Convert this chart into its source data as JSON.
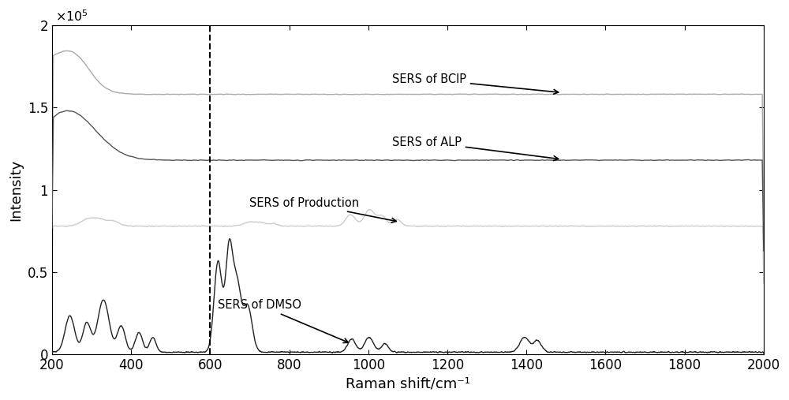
{
  "x_min": 200,
  "x_max": 2000,
  "y_min": 0,
  "y_max": 200000,
  "xlabel": "Raman shift/cm⁻¹",
  "ylabel": "Intensity",
  "dashed_line_x": 600,
  "colors": {
    "BClP": "#aaaaaa",
    "ALP": "#555555",
    "Production": "#cccccc",
    "DMSO": "#222222"
  },
  "y_ticks": [
    0,
    50000,
    100000,
    150000,
    200000
  ],
  "y_tick_labels": [
    "0",
    "0.5",
    "1",
    "1.5",
    "2"
  ],
  "x_ticks": [
    200,
    400,
    600,
    800,
    1000,
    1200,
    1400,
    1600,
    1800,
    2000
  ]
}
